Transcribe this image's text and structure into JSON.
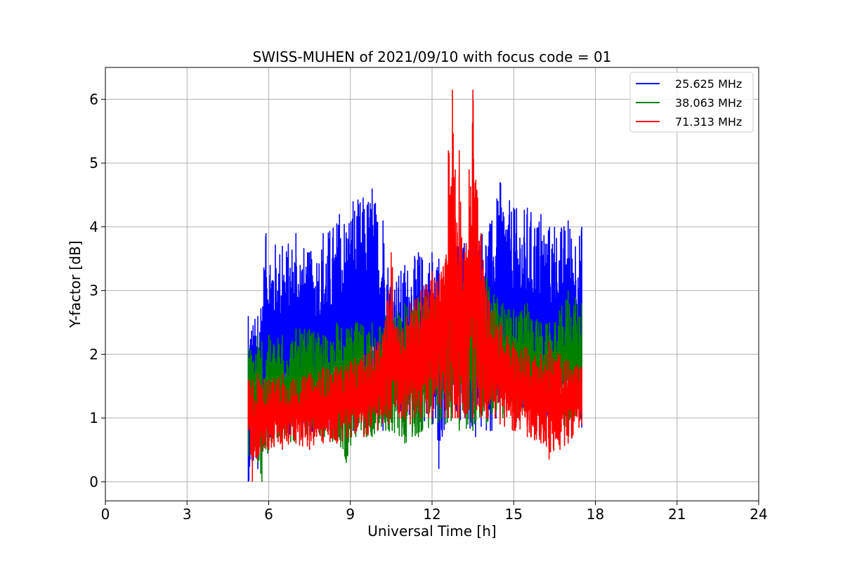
{
  "chart_data": {
    "type": "line",
    "title": "SWISS-MUHEN of 2021/09/10 with focus code = 01",
    "xlabel": "Universal Time [h]",
    "ylabel": "Y-factor [dB]",
    "xlim": [
      0,
      24
    ],
    "ylim": [
      -0.3,
      6.5
    ],
    "xticks": [
      0,
      3,
      6,
      9,
      12,
      15,
      18,
      21,
      24
    ],
    "yticks": [
      0,
      1,
      2,
      3,
      4,
      5,
      6
    ],
    "grid": true,
    "legend_position": "top-right",
    "x_start": 5.25,
    "x_end": 17.5,
    "series": [
      {
        "name": "25.625 MHz",
        "color": "#0000ff",
        "envelope": [
          {
            "x": 5.25,
            "low": 0.0,
            "high": 2.6
          },
          {
            "x": 5.6,
            "low": 0.2,
            "high": 2.6
          },
          {
            "x": 5.9,
            "low": 0.7,
            "high": 3.9
          },
          {
            "x": 6.5,
            "low": 0.7,
            "high": 3.7
          },
          {
            "x": 7.0,
            "low": 0.75,
            "high": 3.9
          },
          {
            "x": 7.5,
            "low": 0.75,
            "high": 3.6
          },
          {
            "x": 8.0,
            "low": 0.75,
            "high": 3.9
          },
          {
            "x": 8.6,
            "low": 0.7,
            "high": 4.2
          },
          {
            "x": 9.1,
            "low": 0.8,
            "high": 4.4
          },
          {
            "x": 9.8,
            "low": 0.8,
            "high": 4.6
          },
          {
            "x": 10.2,
            "low": 0.8,
            "high": 4.1
          },
          {
            "x": 10.5,
            "low": 1.0,
            "high": 3.2
          },
          {
            "x": 11.0,
            "low": 0.9,
            "high": 3.4
          },
          {
            "x": 11.5,
            "low": 0.9,
            "high": 3.6
          },
          {
            "x": 12.0,
            "low": 0.9,
            "high": 3.6
          },
          {
            "x": 12.25,
            "low": 0.2,
            "high": 3.5
          },
          {
            "x": 12.5,
            "low": 0.9,
            "high": 3.4
          },
          {
            "x": 13.0,
            "low": 0.9,
            "high": 3.8
          },
          {
            "x": 13.6,
            "low": 0.7,
            "high": 4.0
          },
          {
            "x": 14.2,
            "low": 0.8,
            "high": 4.1
          },
          {
            "x": 14.5,
            "low": 1.0,
            "high": 4.7
          },
          {
            "x": 15.0,
            "low": 1.0,
            "high": 4.3
          },
          {
            "x": 15.5,
            "low": 0.95,
            "high": 4.3
          },
          {
            "x": 16.0,
            "low": 0.95,
            "high": 4.2
          },
          {
            "x": 16.5,
            "low": 0.95,
            "high": 4.0
          },
          {
            "x": 17.0,
            "low": 0.9,
            "high": 4.1
          },
          {
            "x": 17.5,
            "low": 0.85,
            "high": 4.0
          }
        ]
      },
      {
        "name": "38.063 MHz",
        "color": "#008000",
        "envelope": [
          {
            "x": 5.25,
            "low": 0.4,
            "high": 2.1
          },
          {
            "x": 5.6,
            "low": 0.3,
            "high": 2.3
          },
          {
            "x": 5.75,
            "low": 0.0,
            "high": 2.2
          },
          {
            "x": 6.0,
            "low": 0.5,
            "high": 2.3
          },
          {
            "x": 6.5,
            "low": 0.6,
            "high": 2.3
          },
          {
            "x": 7.0,
            "low": 0.6,
            "high": 2.4
          },
          {
            "x": 7.5,
            "low": 0.7,
            "high": 2.4
          },
          {
            "x": 8.0,
            "low": 0.65,
            "high": 2.3
          },
          {
            "x": 8.5,
            "low": 0.6,
            "high": 2.5
          },
          {
            "x": 8.85,
            "low": 0.3,
            "high": 2.4
          },
          {
            "x": 9.2,
            "low": 0.7,
            "high": 2.5
          },
          {
            "x": 9.8,
            "low": 0.7,
            "high": 2.5
          },
          {
            "x": 10.3,
            "low": 0.8,
            "high": 2.6
          },
          {
            "x": 11.0,
            "low": 0.6,
            "high": 2.8
          },
          {
            "x": 11.5,
            "low": 0.7,
            "high": 2.9
          },
          {
            "x": 12.0,
            "low": 0.9,
            "high": 3.0
          },
          {
            "x": 12.5,
            "low": 0.9,
            "high": 3.1
          },
          {
            "x": 13.0,
            "low": 0.8,
            "high": 3.3
          },
          {
            "x": 13.5,
            "low": 0.8,
            "high": 3.3
          },
          {
            "x": 14.0,
            "low": 0.9,
            "high": 3.2
          },
          {
            "x": 14.6,
            "low": 1.0,
            "high": 2.8
          },
          {
            "x": 15.0,
            "low": 1.0,
            "high": 2.7
          },
          {
            "x": 15.5,
            "low": 1.0,
            "high": 2.8
          },
          {
            "x": 16.0,
            "low": 0.9,
            "high": 2.5
          },
          {
            "x": 16.5,
            "low": 0.9,
            "high": 2.5
          },
          {
            "x": 17.0,
            "low": 0.8,
            "high": 3.0
          },
          {
            "x": 17.5,
            "low": 1.0,
            "high": 2.8
          }
        ]
      },
      {
        "name": "71.313 MHz",
        "color": "#ff0000",
        "envelope": [
          {
            "x": 5.25,
            "low": 0.8,
            "high": 1.6
          },
          {
            "x": 5.4,
            "low": 0.0,
            "high": 1.6
          },
          {
            "x": 5.6,
            "low": 0.4,
            "high": 1.7
          },
          {
            "x": 6.0,
            "low": 0.5,
            "high": 1.6
          },
          {
            "x": 6.5,
            "low": 0.5,
            "high": 1.7
          },
          {
            "x": 7.0,
            "low": 0.6,
            "high": 1.6
          },
          {
            "x": 7.5,
            "low": 0.5,
            "high": 1.7
          },
          {
            "x": 8.0,
            "low": 0.6,
            "high": 1.8
          },
          {
            "x": 8.5,
            "low": 0.6,
            "high": 1.8
          },
          {
            "x": 9.0,
            "low": 0.7,
            "high": 1.9
          },
          {
            "x": 9.5,
            "low": 0.7,
            "high": 2.0
          },
          {
            "x": 10.0,
            "low": 0.8,
            "high": 2.2
          },
          {
            "x": 10.4,
            "low": 0.9,
            "high": 3.0
          },
          {
            "x": 10.5,
            "low": 1.0,
            "high": 3.6
          },
          {
            "x": 10.8,
            "low": 1.0,
            "high": 2.4
          },
          {
            "x": 11.2,
            "low": 0.9,
            "high": 2.8
          },
          {
            "x": 11.6,
            "low": 1.0,
            "high": 3.0
          },
          {
            "x": 12.0,
            "low": 1.0,
            "high": 3.3
          },
          {
            "x": 12.5,
            "low": 1.0,
            "high": 3.5
          },
          {
            "x": 12.6,
            "low": 1.0,
            "high": 5.2
          },
          {
            "x": 12.75,
            "low": 1.0,
            "high": 6.15
          },
          {
            "x": 12.85,
            "low": 1.0,
            "high": 4.9
          },
          {
            "x": 13.0,
            "low": 1.0,
            "high": 5.2
          },
          {
            "x": 13.2,
            "low": 1.0,
            "high": 3.6
          },
          {
            "x": 13.5,
            "low": 1.0,
            "high": 6.15
          },
          {
            "x": 13.8,
            "low": 1.0,
            "high": 3.9
          },
          {
            "x": 14.0,
            "low": 1.0,
            "high": 3.0
          },
          {
            "x": 14.5,
            "low": 0.9,
            "high": 2.5
          },
          {
            "x": 15.0,
            "low": 0.8,
            "high": 2.2
          },
          {
            "x": 15.5,
            "low": 0.7,
            "high": 2.1
          },
          {
            "x": 16.0,
            "low": 0.6,
            "high": 2.0
          },
          {
            "x": 16.3,
            "low": 0.35,
            "high": 2.2
          },
          {
            "x": 16.7,
            "low": 0.5,
            "high": 2.0
          },
          {
            "x": 17.0,
            "low": 0.6,
            "high": 1.9
          },
          {
            "x": 17.5,
            "low": 0.9,
            "high": 1.8
          }
        ]
      }
    ]
  }
}
